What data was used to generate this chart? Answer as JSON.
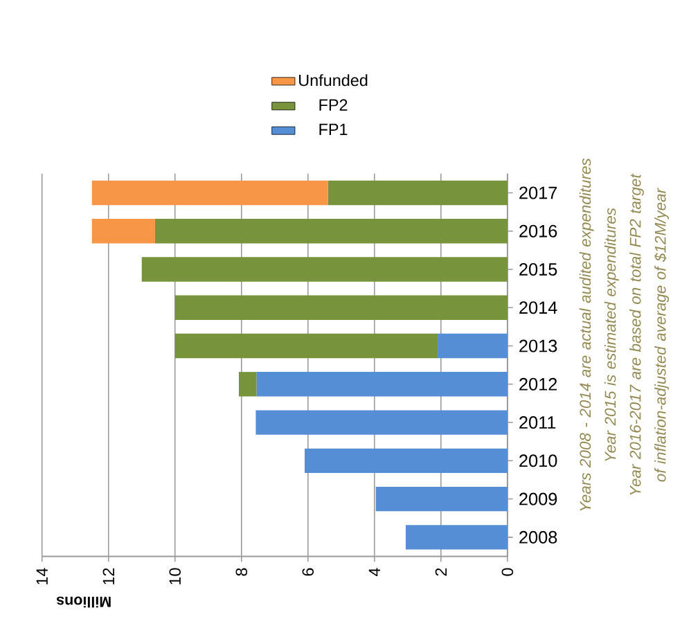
{
  "chart_data": {
    "type": "bar",
    "orientation": "horizontal",
    "stacked": true,
    "xlabel": "Millions",
    "categories": [
      "2017",
      "2016",
      "2015",
      "2014",
      "2013",
      "2012",
      "2011",
      "2010",
      "2009",
      "2008"
    ],
    "series": [
      {
        "name": "FP1",
        "color": "#558ed5",
        "values": [
          null,
          null,
          null,
          null,
          2.1,
          7.55,
          7.57,
          6.1,
          3.96,
          3.06
        ]
      },
      {
        "name": "FP2",
        "color": "#77933c",
        "values": [
          5.4,
          10.6,
          11.0,
          10.0,
          7.9,
          0.53,
          null,
          null,
          null,
          null
        ]
      },
      {
        "name": "Unfunded",
        "color": "#f79646",
        "values": [
          7.1,
          1.9,
          null,
          null,
          null,
          null,
          null,
          null,
          null,
          null
        ]
      }
    ],
    "xlim": [
      14,
      0
    ],
    "xticks": [
      14,
      12,
      10,
      8,
      6,
      4,
      2,
      0
    ],
    "grid": "x",
    "legend": "top",
    "annotations": [
      "Years 2008 - 2014 are actual audited expenditures",
      "Year 2015 is estimated expenditures",
      "Year 2016-2017 are based on total FP2 target of inflation-adjusted average of $12M/year"
    ]
  }
}
